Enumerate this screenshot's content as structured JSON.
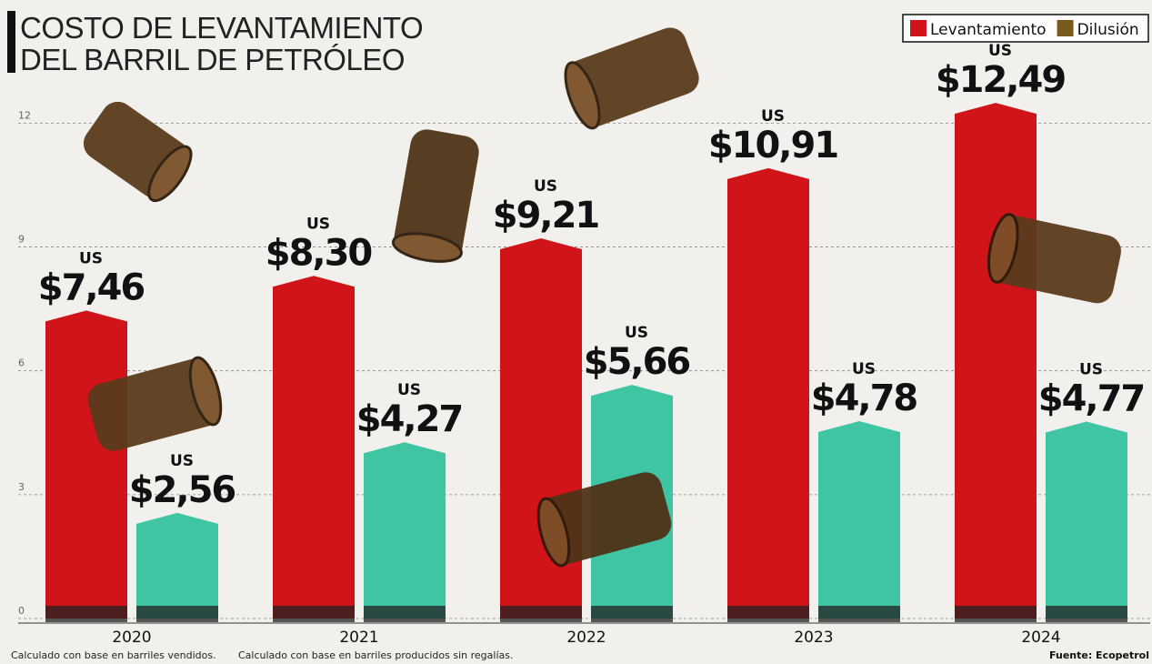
{
  "chart_data": {
    "type": "bar",
    "title": "COSTO DE LEVANTAMIENTO",
    "subtitle": "DEL BARRIL DE PETRÓLEO",
    "categories": [
      "2020",
      "2021",
      "2022",
      "2023",
      "2024"
    ],
    "currency_label": "US",
    "series": [
      {
        "name": "Levantamiento",
        "color": "#d0141a",
        "values": [
          7.46,
          8.3,
          9.21,
          10.91,
          12.49
        ],
        "value_labels": [
          "$7,46",
          "$8,30",
          "$9,21",
          "$10,91",
          "$12,49"
        ]
      },
      {
        "name": "Dilusión",
        "color": "#3fc4a4",
        "values": [
          2.56,
          4.27,
          5.66,
          4.78,
          4.77
        ],
        "value_labels": [
          "$2,56",
          "$4,27",
          "$5,66",
          "$4,78",
          "$4,77"
        ]
      }
    ],
    "ylim": [
      0,
      13
    ],
    "yticks": [
      0,
      3,
      6,
      9,
      12
    ],
    "grid": true,
    "legend_position": "top-right",
    "notes": [
      "Calculado con base en barriles vendidos.",
      "Calculado con base en barriles producidos sin regalías."
    ],
    "source": "Fuente: Ecopetrol"
  }
}
